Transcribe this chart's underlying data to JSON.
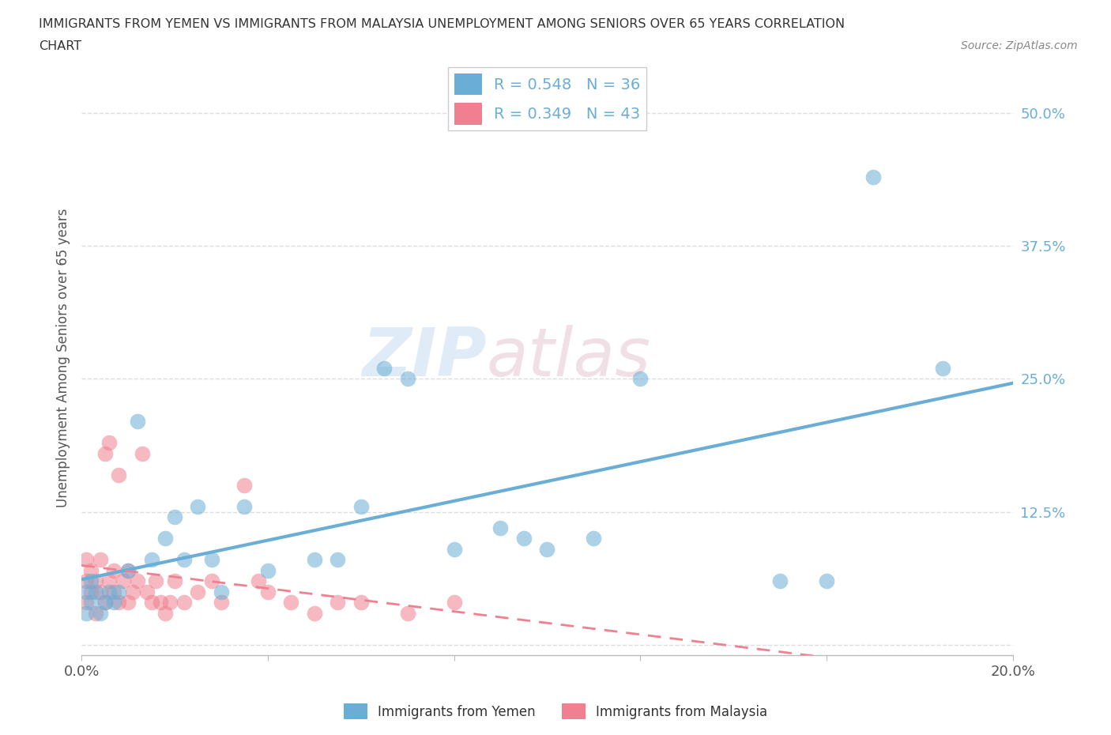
{
  "title_line1": "IMMIGRANTS FROM YEMEN VS IMMIGRANTS FROM MALAYSIA UNEMPLOYMENT AMONG SENIORS OVER 65 YEARS CORRELATION",
  "title_line2": "CHART",
  "source_text": "Source: ZipAtlas.com",
  "ylabel": "Unemployment Among Seniors over 65 years",
  "xlim": [
    0.0,
    0.2
  ],
  "ylim": [
    -0.01,
    0.55
  ],
  "xticks": [
    0.0,
    0.04,
    0.08,
    0.12,
    0.16,
    0.2
  ],
  "xticklabels": [
    "0.0%",
    "",
    "",
    "",
    "",
    "20.0%"
  ],
  "yticks": [
    0.0,
    0.125,
    0.25,
    0.375,
    0.5
  ],
  "yticklabels": [
    "",
    "12.5%",
    "25.0%",
    "37.5%",
    "50.0%"
  ],
  "yemen_color": "#6aaed6",
  "malaysia_color": "#f08090",
  "yemen_R": 0.548,
  "yemen_N": 36,
  "malaysia_R": 0.349,
  "malaysia_N": 43,
  "watermark_zip": "ZIP",
  "watermark_atlas": "atlas",
  "yemen_scatter_x": [
    0.001,
    0.001,
    0.002,
    0.002,
    0.003,
    0.004,
    0.005,
    0.006,
    0.007,
    0.008,
    0.01,
    0.012,
    0.015,
    0.018,
    0.02,
    0.022,
    0.025,
    0.028,
    0.03,
    0.035,
    0.04,
    0.05,
    0.055,
    0.06,
    0.065,
    0.07,
    0.08,
    0.09,
    0.095,
    0.1,
    0.11,
    0.12,
    0.15,
    0.16,
    0.17,
    0.185
  ],
  "yemen_scatter_y": [
    0.03,
    0.05,
    0.04,
    0.06,
    0.05,
    0.03,
    0.04,
    0.05,
    0.04,
    0.05,
    0.07,
    0.21,
    0.08,
    0.1,
    0.12,
    0.08,
    0.13,
    0.08,
    0.05,
    0.13,
    0.07,
    0.08,
    0.08,
    0.13,
    0.26,
    0.25,
    0.09,
    0.11,
    0.1,
    0.09,
    0.1,
    0.25,
    0.06,
    0.06,
    0.44,
    0.26
  ],
  "malaysia_scatter_x": [
    0.001,
    0.001,
    0.001,
    0.002,
    0.002,
    0.003,
    0.003,
    0.004,
    0.004,
    0.005,
    0.005,
    0.006,
    0.006,
    0.007,
    0.007,
    0.008,
    0.008,
    0.009,
    0.01,
    0.01,
    0.011,
    0.012,
    0.013,
    0.014,
    0.015,
    0.016,
    0.017,
    0.018,
    0.019,
    0.02,
    0.022,
    0.025,
    0.028,
    0.03,
    0.035,
    0.038,
    0.04,
    0.045,
    0.05,
    0.055,
    0.06,
    0.07,
    0.08
  ],
  "malaysia_scatter_y": [
    0.04,
    0.06,
    0.08,
    0.05,
    0.07,
    0.03,
    0.06,
    0.05,
    0.08,
    0.18,
    0.04,
    0.06,
    0.19,
    0.05,
    0.07,
    0.04,
    0.16,
    0.06,
    0.04,
    0.07,
    0.05,
    0.06,
    0.18,
    0.05,
    0.04,
    0.06,
    0.04,
    0.03,
    0.04,
    0.06,
    0.04,
    0.05,
    0.06,
    0.04,
    0.15,
    0.06,
    0.05,
    0.04,
    0.03,
    0.04,
    0.04,
    0.03,
    0.04
  ]
}
